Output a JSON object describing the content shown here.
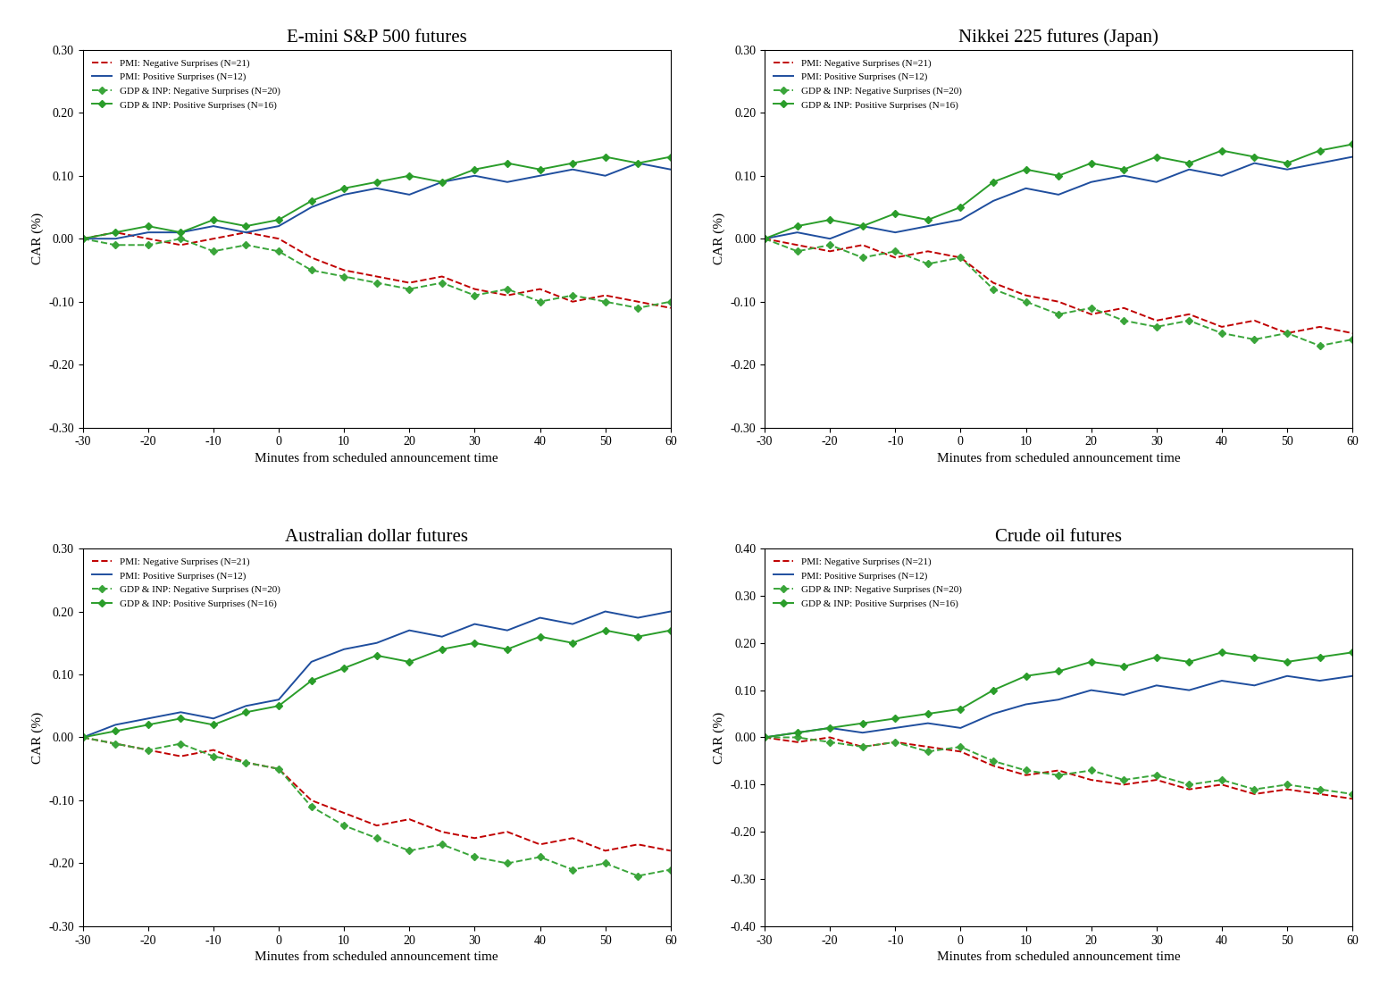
{
  "chart_data": [
    {
      "type": "line",
      "title": "E-mini S&P 500 futures",
      "xlabel": "Minutes from scheduled announcement time",
      "ylabel": "CAR (%)",
      "x": [
        -30,
        -25,
        -20,
        -15,
        -10,
        -5,
        0,
        5,
        10,
        15,
        20,
        25,
        30,
        35,
        40,
        45,
        50,
        55,
        60
      ],
      "xlim": [
        -30,
        60
      ],
      "xticks": [
        -30,
        -20,
        -10,
        0,
        10,
        20,
        30,
        40,
        50,
        60
      ],
      "ylim": [
        -0.3,
        0.3
      ],
      "yticks": [
        {
          "value": -0.3,
          "label": "-0.30"
        },
        {
          "value": -0.2,
          "label": "-0.20"
        },
        {
          "value": -0.1,
          "label": "-0.10"
        },
        {
          "value": 0,
          "label": "0.00"
        },
        {
          "value": 0.1,
          "label": "0.10"
        },
        {
          "value": 0.2,
          "label": "0.20"
        },
        {
          "value": 0.3,
          "label": "0.30"
        }
      ],
      "legend": "upper left",
      "series": [
        {
          "name": "PMI: Negative Surprises (N=21)",
          "color": "#c00000",
          "line_style": "dashed",
          "marker": "none",
          "values": [
            0,
            0.01,
            0.0,
            -0.01,
            0.0,
            0.01,
            0.0,
            -0.03,
            -0.05,
            -0.06,
            -0.07,
            -0.06,
            -0.08,
            -0.09,
            -0.08,
            -0.1,
            -0.09,
            -0.1,
            -0.11
          ]
        },
        {
          "name": "PMI: Positive Surprises (N=12)",
          "color": "#1f4e9e",
          "line_style": "solid",
          "marker": "none",
          "values": [
            0,
            0.0,
            0.01,
            0.01,
            0.02,
            0.01,
            0.02,
            0.05,
            0.07,
            0.08,
            0.07,
            0.09,
            0.1,
            0.09,
            0.1,
            0.11,
            0.1,
            0.12,
            0.11
          ]
        },
        {
          "name": "GDP & INP: Negative Surprises (N=20)",
          "color": "#3aa53a",
          "line_style": "dashed",
          "marker": "diamond",
          "values": [
            0,
            -0.01,
            -0.01,
            0.0,
            -0.02,
            -0.01,
            -0.02,
            -0.05,
            -0.06,
            -0.07,
            -0.08,
            -0.07,
            -0.09,
            -0.08,
            -0.1,
            -0.09,
            -0.1,
            -0.11,
            -0.1
          ]
        },
        {
          "name": "GDP & INP: Positive Surprises (N=16)",
          "color": "#2a9d2a",
          "line_style": "solid",
          "marker": "diamond",
          "values": [
            0,
            0.01,
            0.02,
            0.01,
            0.03,
            0.02,
            0.03,
            0.06,
            0.08,
            0.09,
            0.1,
            0.09,
            0.11,
            0.12,
            0.11,
            0.12,
            0.13,
            0.12,
            0.13
          ]
        }
      ]
    },
    {
      "type": "line",
      "title": "Nikkei 225 futures (Japan)",
      "xlabel": "Minutes from scheduled announcement time",
      "ylabel": "CAR (%)",
      "x": [
        -30,
        -25,
        -20,
        -15,
        -10,
        -5,
        0,
        5,
        10,
        15,
        20,
        25,
        30,
        35,
        40,
        45,
        50,
        55,
        60
      ],
      "xlim": [
        -30,
        60
      ],
      "xticks": [
        -30,
        -20,
        -10,
        0,
        10,
        20,
        30,
        40,
        50,
        60
      ],
      "ylim": [
        -0.3,
        0.3
      ],
      "yticks": [
        {
          "value": -0.3,
          "label": "-0.30"
        },
        {
          "value": -0.2,
          "label": "-0.20"
        },
        {
          "value": -0.1,
          "label": "-0.10"
        },
        {
          "value": 0,
          "label": "0.00"
        },
        {
          "value": 0.1,
          "label": "0.10"
        },
        {
          "value": 0.2,
          "label": "0.20"
        },
        {
          "value": 0.3,
          "label": "0.30"
        }
      ],
      "legend": "upper left",
      "series": [
        {
          "name": "PMI: Negative Surprises (N=21)",
          "color": "#c00000",
          "line_style": "dashed",
          "marker": "none",
          "values": [
            0,
            -0.01,
            -0.02,
            -0.01,
            -0.03,
            -0.02,
            -0.03,
            -0.07,
            -0.09,
            -0.1,
            -0.12,
            -0.11,
            -0.13,
            -0.12,
            -0.14,
            -0.13,
            -0.15,
            -0.14,
            -0.15
          ]
        },
        {
          "name": "PMI: Positive Surprises (N=12)",
          "color": "#1f4e9e",
          "line_style": "solid",
          "marker": "none",
          "values": [
            0,
            0.01,
            0.0,
            0.02,
            0.01,
            0.02,
            0.03,
            0.06,
            0.08,
            0.07,
            0.09,
            0.1,
            0.09,
            0.11,
            0.1,
            0.12,
            0.11,
            0.12,
            0.13
          ]
        },
        {
          "name": "GDP & INP: Negative Surprises (N=20)",
          "color": "#3aa53a",
          "line_style": "dashed",
          "marker": "diamond",
          "values": [
            0,
            -0.02,
            -0.01,
            -0.03,
            -0.02,
            -0.04,
            -0.03,
            -0.08,
            -0.1,
            -0.12,
            -0.11,
            -0.13,
            -0.14,
            -0.13,
            -0.15,
            -0.16,
            -0.15,
            -0.17,
            -0.16
          ]
        },
        {
          "name": "GDP & INP: Positive Surprises (N=16)",
          "color": "#2a9d2a",
          "line_style": "solid",
          "marker": "diamond",
          "values": [
            0,
            0.02,
            0.03,
            0.02,
            0.04,
            0.03,
            0.05,
            0.09,
            0.11,
            0.1,
            0.12,
            0.11,
            0.13,
            0.12,
            0.14,
            0.13,
            0.12,
            0.14,
            0.15
          ]
        }
      ]
    },
    {
      "type": "line",
      "title": "Australian dollar futures",
      "xlabel": "Minutes from scheduled announcement time",
      "ylabel": "CAR (%)",
      "x": [
        -30,
        -25,
        -20,
        -15,
        -10,
        -5,
        0,
        5,
        10,
        15,
        20,
        25,
        30,
        35,
        40,
        45,
        50,
        55,
        60
      ],
      "xlim": [
        -30,
        60
      ],
      "xticks": [
        -30,
        -20,
        -10,
        0,
        10,
        20,
        30,
        40,
        50,
        60
      ],
      "ylim": [
        -0.3,
        0.3
      ],
      "yticks": [
        {
          "value": -0.3,
          "label": "-0.30"
        },
        {
          "value": -0.2,
          "label": "-0.20"
        },
        {
          "value": -0.1,
          "label": "-0.10"
        },
        {
          "value": 0,
          "label": "0.00"
        },
        {
          "value": 0.1,
          "label": "0.10"
        },
        {
          "value": 0.2,
          "label": "0.20"
        },
        {
          "value": 0.3,
          "label": "0.30"
        }
      ],
      "legend": "upper left",
      "series": [
        {
          "name": "PMI: Negative Surprises (N=21)",
          "color": "#c00000",
          "line_style": "dashed",
          "marker": "none",
          "values": [
            0,
            -0.01,
            -0.02,
            -0.03,
            -0.02,
            -0.04,
            -0.05,
            -0.1,
            -0.12,
            -0.14,
            -0.13,
            -0.15,
            -0.16,
            -0.15,
            -0.17,
            -0.16,
            -0.18,
            -0.17,
            -0.18
          ]
        },
        {
          "name": "PMI: Positive Surprises (N=12)",
          "color": "#1f4e9e",
          "line_style": "solid",
          "marker": "none",
          "values": [
            0,
            0.02,
            0.03,
            0.04,
            0.03,
            0.05,
            0.06,
            0.12,
            0.14,
            0.15,
            0.17,
            0.16,
            0.18,
            0.17,
            0.19,
            0.18,
            0.2,
            0.19,
            0.2
          ]
        },
        {
          "name": "GDP & INP: Negative Surprises (N=20)",
          "color": "#3aa53a",
          "line_style": "dashed",
          "marker": "diamond",
          "values": [
            0,
            -0.01,
            -0.02,
            -0.01,
            -0.03,
            -0.04,
            -0.05,
            -0.11,
            -0.14,
            -0.16,
            -0.18,
            -0.17,
            -0.19,
            -0.2,
            -0.19,
            -0.21,
            -0.2,
            -0.22,
            -0.21
          ]
        },
        {
          "name": "GDP & INP: Positive Surprises (N=16)",
          "color": "#2a9d2a",
          "line_style": "solid",
          "marker": "diamond",
          "values": [
            0,
            0.01,
            0.02,
            0.03,
            0.02,
            0.04,
            0.05,
            0.09,
            0.11,
            0.13,
            0.12,
            0.14,
            0.15,
            0.14,
            0.16,
            0.15,
            0.17,
            0.16,
            0.17
          ]
        }
      ]
    },
    {
      "type": "line",
      "title": "Crude oil futures",
      "xlabel": "Minutes from scheduled announcement time",
      "ylabel": "CAR (%)",
      "x": [
        -30,
        -25,
        -20,
        -15,
        -10,
        -5,
        0,
        5,
        10,
        15,
        20,
        25,
        30,
        35,
        40,
        45,
        50,
        55,
        60
      ],
      "xlim": [
        -30,
        60
      ],
      "xticks": [
        -30,
        -20,
        -10,
        0,
        10,
        20,
        30,
        40,
        50,
        60
      ],
      "ylim": [
        -0.4,
        0.4
      ],
      "yticks": [
        {
          "value": -0.4,
          "label": "-0.40"
        },
        {
          "value": -0.3,
          "label": "-0.30"
        },
        {
          "value": -0.2,
          "label": "-0.20"
        },
        {
          "value": -0.1,
          "label": "-0.10"
        },
        {
          "value": 0,
          "label": "0.00"
        },
        {
          "value": 0.1,
          "label": "0.10"
        },
        {
          "value": 0.2,
          "label": "0.20"
        },
        {
          "value": 0.3,
          "label": "0.30"
        },
        {
          "value": 0.4,
          "label": "0.40"
        }
      ],
      "legend": "upper left",
      "series": [
        {
          "name": "PMI: Negative Surprises (N=21)",
          "color": "#c00000",
          "line_style": "dashed",
          "marker": "none",
          "values": [
            0,
            -0.01,
            0.0,
            -0.02,
            -0.01,
            -0.02,
            -0.03,
            -0.06,
            -0.08,
            -0.07,
            -0.09,
            -0.1,
            -0.09,
            -0.11,
            -0.1,
            -0.12,
            -0.11,
            -0.12,
            -0.13
          ]
        },
        {
          "name": "PMI: Positive Surprises (N=12)",
          "color": "#1f4e9e",
          "line_style": "solid",
          "marker": "none",
          "values": [
            0,
            0.01,
            0.02,
            0.01,
            0.02,
            0.03,
            0.02,
            0.05,
            0.07,
            0.08,
            0.1,
            0.09,
            0.11,
            0.1,
            0.12,
            0.11,
            0.13,
            0.12,
            0.13
          ]
        },
        {
          "name": "GDP & INP: Negative Surprises (N=20)",
          "color": "#3aa53a",
          "line_style": "dashed",
          "marker": "diamond",
          "values": [
            0,
            0.0,
            -0.01,
            -0.02,
            -0.01,
            -0.03,
            -0.02,
            -0.05,
            -0.07,
            -0.08,
            -0.07,
            -0.09,
            -0.08,
            -0.1,
            -0.09,
            -0.11,
            -0.1,
            -0.11,
            -0.12
          ]
        },
        {
          "name": "GDP & INP: Positive Surprises (N=16)",
          "color": "#2a9d2a",
          "line_style": "solid",
          "marker": "diamond",
          "values": [
            0,
            0.01,
            0.02,
            0.03,
            0.04,
            0.05,
            0.06,
            0.1,
            0.13,
            0.14,
            0.16,
            0.15,
            0.17,
            0.16,
            0.18,
            0.17,
            0.16,
            0.17,
            0.18
          ]
        }
      ]
    }
  ]
}
